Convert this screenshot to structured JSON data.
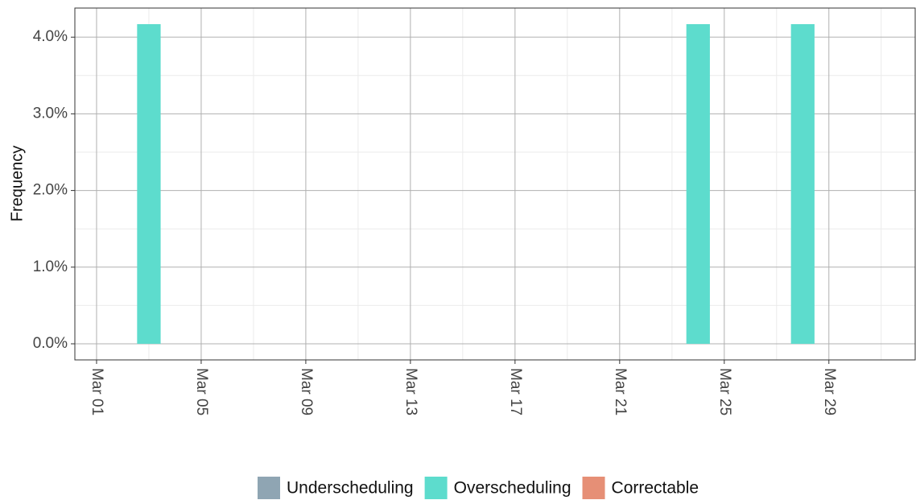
{
  "chart_data": {
    "type": "bar",
    "y_label": "Frequency",
    "x": [
      3,
      24,
      28
    ],
    "xlim": [
      0.17,
      32.3
    ],
    "xticks": [
      {
        "value": 1,
        "label": "Mar 01"
      },
      {
        "value": 5,
        "label": "Mar 05"
      },
      {
        "value": 9,
        "label": "Mar 09"
      },
      {
        "value": 13,
        "label": "Mar 13"
      },
      {
        "value": 17,
        "label": "Mar 17"
      },
      {
        "value": 21,
        "label": "Mar 21"
      },
      {
        "value": 25,
        "label": "Mar 25"
      },
      {
        "value": 29,
        "label": "Mar 29"
      }
    ],
    "ylim": [
      -0.21,
      4.38
    ],
    "yticks": [
      {
        "value": 0,
        "label": "0.0%"
      },
      {
        "value": 1,
        "label": "1.0%"
      },
      {
        "value": 2,
        "label": "2.0%"
      },
      {
        "value": 3,
        "label": "3.0%"
      },
      {
        "value": 4,
        "label": "4.0%"
      }
    ],
    "series": [
      {
        "name": "Underscheduling",
        "color": "#8fa5b3",
        "values": [
          0,
          0,
          0
        ]
      },
      {
        "name": "Overscheduling",
        "color": "#5ddccd",
        "values": [
          4.17,
          4.17,
          4.17
        ]
      },
      {
        "name": "Correctable",
        "color": "#e68f76",
        "values": [
          0,
          0,
          0
        ]
      }
    ],
    "grid": true,
    "legend": "bottom"
  }
}
